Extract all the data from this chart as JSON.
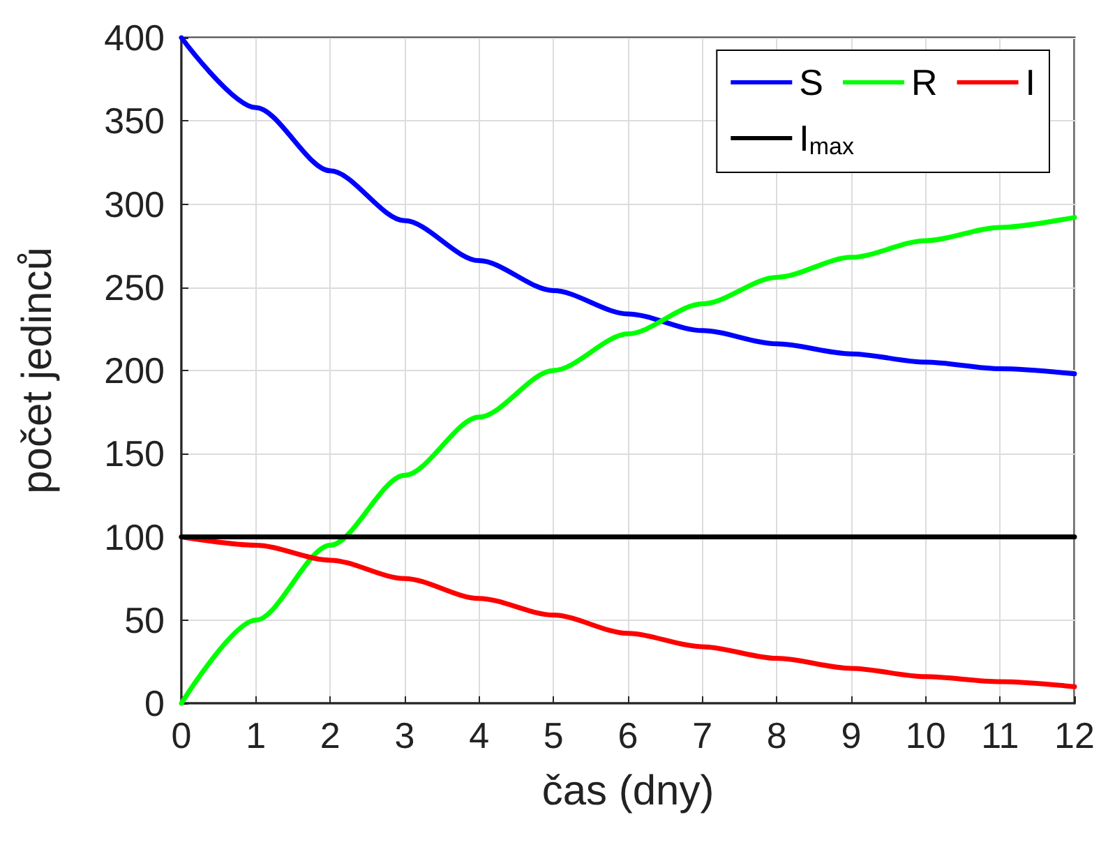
{
  "chart_data": {
    "type": "line",
    "xlabel": "čas (dny)",
    "ylabel": "počet jedinců",
    "x": [
      0,
      1,
      2,
      3,
      4,
      5,
      6,
      7,
      8,
      9,
      10,
      11,
      12
    ],
    "series": [
      {
        "name": "S",
        "color": "#0000ff",
        "values": [
          400,
          358,
          320,
          290,
          266,
          248,
          234,
          224,
          216,
          210,
          205,
          201,
          198
        ]
      },
      {
        "name": "R",
        "color": "#00ff00",
        "values": [
          0,
          50,
          95,
          137,
          172,
          200,
          222,
          240,
          256,
          268,
          278,
          286,
          292
        ]
      },
      {
        "name": "I",
        "color": "#ff0000",
        "values": [
          100,
          95,
          86,
          75,
          63,
          53,
          42,
          34,
          27,
          21,
          16,
          13,
          10
        ]
      },
      {
        "name": "I$_{max}$",
        "color": "#000000",
        "values": [
          100,
          100,
          100,
          100,
          100,
          100,
          100,
          100,
          100,
          100,
          100,
          100,
          100
        ]
      }
    ],
    "xlim": [
      0,
      12
    ],
    "xticks": [
      0,
      1,
      2,
      3,
      4,
      5,
      6,
      7,
      8,
      9,
      10,
      11,
      12
    ],
    "ylim": [
      0,
      400
    ],
    "yticks": [
      0,
      50,
      100,
      150,
      200,
      250,
      300,
      350,
      400
    ],
    "grid": true,
    "legend": "top right",
    "marker": "none",
    "line_style": "solid"
  }
}
